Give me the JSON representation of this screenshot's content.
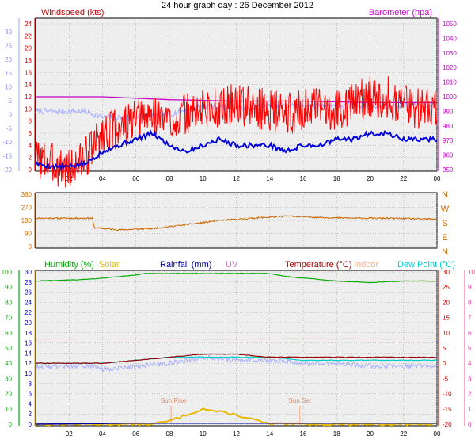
{
  "title": "24 hour graph day : 26 December 2012",
  "colors": {
    "windspeed": "#ff0000",
    "windspeed_avg": "#0000dd",
    "temp_on_wind": "#aab0ff",
    "barometer": "#cc00cc",
    "direction": "#cc6600",
    "humidity": "#00aa00",
    "solar": "#e6b800",
    "rainfall": "#0000aa",
    "uv": "#cc66cc",
    "temperature": "#990000",
    "indoor": "#ffaa88",
    "dewpoint": "#00cccc",
    "gridline": "#999999",
    "plot_bg": "#eeeeee"
  },
  "chart_data": [
    {
      "type": "line",
      "labels": {
        "left": "Windspeed (kts)",
        "right": "Barometer (hpa)"
      },
      "left_ticks_wind": [
        "24",
        "22",
        "20",
        "18",
        "16",
        "14",
        "12",
        "10",
        "8",
        "6",
        "4",
        "2",
        "0"
      ],
      "outer_ticks_temp": [
        "30",
        "25",
        "20",
        "15",
        "10",
        "5",
        "0",
        "-5",
        "-10",
        "-15",
        "-20"
      ],
      "right_ticks_baro": [
        "1050",
        "1040",
        "1030",
        "1020",
        "1010",
        "1000",
        "990",
        "980",
        "970",
        "960",
        "950"
      ],
      "x_ticks": [
        "02",
        "04",
        "06",
        "08",
        "10",
        "12",
        "14",
        "16",
        "18",
        "20",
        "22",
        "00"
      ],
      "series": [
        {
          "key": "gust",
          "x": [
            0,
            2,
            3,
            3.5,
            4,
            5,
            6,
            7,
            8,
            9,
            10,
            11,
            12,
            13,
            14,
            15,
            16,
            17,
            18,
            19,
            20,
            21,
            22,
            23,
            24
          ],
          "values": [
            2,
            0,
            2,
            4,
            6,
            7,
            8,
            9,
            8,
            9,
            10,
            10,
            11,
            10,
            10,
            9,
            10,
            10,
            10,
            11,
            12,
            12,
            11,
            10,
            11
          ]
        },
        {
          "key": "average",
          "x": [
            0,
            1,
            2,
            3,
            3.5,
            4,
            5,
            6,
            7,
            8,
            9,
            10,
            11,
            12,
            13,
            14,
            15,
            16,
            17,
            18,
            19,
            20,
            21,
            22,
            23,
            24
          ],
          "values": [
            1,
            0.5,
            0.5,
            1,
            2,
            3,
            4,
            5,
            6,
            4,
            3,
            4,
            5,
            4,
            4,
            4,
            3,
            4,
            4,
            5,
            5,
            6,
            6,
            5,
            5,
            5
          ]
        },
        {
          "key": "temperature",
          "x": [
            0,
            2,
            3,
            3.5,
            4,
            6,
            8,
            10,
            12,
            14,
            16,
            18,
            20,
            22,
            24
          ],
          "values": [
            0,
            0,
            0,
            -1,
            -2,
            -2,
            -1,
            2,
            1,
            2,
            2,
            2,
            2,
            2,
            2
          ]
        },
        {
          "key": "barometer",
          "x": [
            0,
            4,
            8,
            12,
            16,
            20,
            24
          ],
          "values": [
            1000,
            1000,
            998,
            997,
            997,
            996,
            996
          ]
        }
      ]
    },
    {
      "type": "line",
      "left_ticks": [
        "360",
        "270",
        "180",
        "90",
        "0"
      ],
      "right_labels": [
        "N",
        "W",
        "S",
        "E",
        "N"
      ],
      "series": [
        {
          "key": "direction",
          "x": [
            0,
            3.4,
            3.5,
            5,
            7,
            9,
            11,
            13,
            15,
            17,
            19,
            21,
            23,
            24
          ],
          "values": [
            195,
            195,
            130,
            115,
            125,
            150,
            180,
            195,
            210,
            200,
            195,
            195,
            190,
            190
          ]
        }
      ]
    },
    {
      "type": "line",
      "legend": [
        "Humidity (%)",
        "Solar",
        "Rainfall (mm)",
        "UV",
        "Temperature (°C)",
        "Indoor",
        "Dew Point (°C)"
      ],
      "left_ticks_humidity": [
        "100",
        "90",
        "80",
        "70",
        "60",
        "50",
        "40",
        "30",
        "20",
        "10",
        "0"
      ],
      "left_ticks_solar": [
        "30",
        "28",
        "26",
        "24",
        "22",
        "20",
        "18",
        "16",
        "14",
        "12",
        "10",
        "8",
        "6",
        "4",
        "2",
        "0"
      ],
      "right_ticks_temp": [
        "30",
        "25",
        "20",
        "15",
        "10",
        "5",
        "0",
        "-5",
        "-10",
        "-15",
        "-20"
      ],
      "right_ticks_uv": [
        "10",
        "9",
        "8",
        "7",
        "6",
        "5",
        "4",
        "3",
        "2",
        "1",
        "0"
      ],
      "annotations": [
        "Sun Rise",
        "Sun Set"
      ],
      "x_ticks": [
        "02",
        "04",
        "06",
        "08",
        "10",
        "12",
        "14",
        "16",
        "18",
        "20",
        "22",
        "00"
      ],
      "series": [
        {
          "key": "humidity",
          "x": [
            0,
            3,
            4,
            6,
            6.5,
            10,
            14,
            15,
            16,
            18,
            20,
            22,
            24
          ],
          "values": [
            94,
            95,
            96,
            98,
            99,
            99,
            99,
            97,
            96,
            94,
            93,
            94,
            94
          ]
        },
        {
          "key": "indoor",
          "x": [
            0,
            24
          ],
          "values": [
            8,
            8
          ]
        },
        {
          "key": "temperature",
          "x": [
            0,
            2,
            4,
            6,
            8,
            10,
            12,
            14,
            16,
            18,
            20,
            22,
            24
          ],
          "values": [
            0,
            0,
            0,
            1,
            2,
            3,
            3,
            2,
            2,
            2,
            2,
            2,
            2
          ]
        },
        {
          "key": "dewpoint",
          "x": [
            0,
            2,
            4,
            6,
            8,
            10,
            12,
            14,
            16,
            18,
            20,
            22,
            24
          ],
          "values": [
            0,
            0,
            0,
            1,
            2,
            2,
            2,
            2,
            1,
            1,
            1,
            1,
            1
          ]
        },
        {
          "key": "temp_outdoor_lavender",
          "x": [
            0,
            2,
            3.5,
            4,
            6,
            8,
            10,
            12,
            14,
            16,
            18,
            20,
            22,
            24
          ],
          "values": [
            -1,
            -1,
            -1,
            -2,
            -1,
            0,
            2,
            1,
            1,
            0,
            0,
            -1,
            -1,
            -1
          ]
        },
        {
          "key": "solar",
          "x": [
            7,
            8,
            9,
            10,
            11,
            12,
            13,
            14
          ],
          "values": [
            0,
            0.2,
            0.6,
            1,
            0.8,
            0.6,
            0.3,
            0
          ]
        },
        {
          "key": "rainfall",
          "x": [
            0,
            6,
            24
          ],
          "values": [
            0,
            0.2,
            0.2
          ]
        }
      ]
    }
  ]
}
